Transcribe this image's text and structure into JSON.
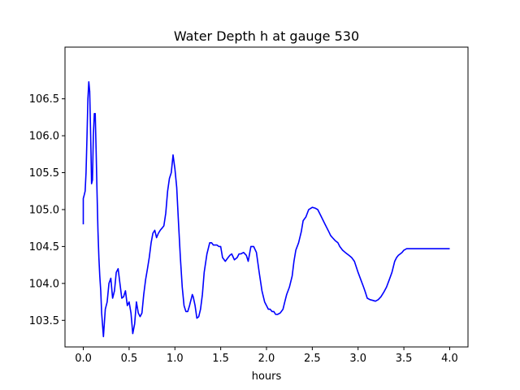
{
  "chart_data": {
    "type": "line",
    "title": "Water Depth h at gauge 530",
    "xlabel": "hours",
    "ylabel": "",
    "xlim": [
      -0.2,
      4.2
    ],
    "ylim": [
      103.14,
      107.2
    ],
    "xticks": [
      {
        "value": 0.0,
        "label": "0.0"
      },
      {
        "value": 0.5,
        "label": "0.5"
      },
      {
        "value": 1.0,
        "label": "1.0"
      },
      {
        "value": 1.5,
        "label": "1.5"
      },
      {
        "value": 2.0,
        "label": "2.0"
      },
      {
        "value": 2.5,
        "label": "2.5"
      },
      {
        "value": 3.0,
        "label": "3.0"
      },
      {
        "value": 3.5,
        "label": "3.5"
      },
      {
        "value": 4.0,
        "label": "4.0"
      }
    ],
    "yticks": [
      {
        "value": 103.5,
        "label": "103.5"
      },
      {
        "value": 104.0,
        "label": "104.0"
      },
      {
        "value": 104.5,
        "label": "104.5"
      },
      {
        "value": 105.0,
        "label": "105.0"
      },
      {
        "value": 105.5,
        "label": "105.5"
      },
      {
        "value": 106.0,
        "label": "106.0"
      },
      {
        "value": 106.5,
        "label": "106.5"
      }
    ],
    "grid": false,
    "series": [
      {
        "color": "#0000ff",
        "x": [
          0.0,
          0.0,
          0.01,
          0.02,
          0.03,
          0.04,
          0.05,
          0.06,
          0.07,
          0.08,
          0.09,
          0.1,
          0.11,
          0.12,
          0.13,
          0.14,
          0.15,
          0.16,
          0.17,
          0.18,
          0.19,
          0.2,
          0.22,
          0.24,
          0.26,
          0.28,
          0.3,
          0.32,
          0.34,
          0.36,
          0.38,
          0.4,
          0.42,
          0.44,
          0.46,
          0.48,
          0.5,
          0.52,
          0.54,
          0.56,
          0.58,
          0.6,
          0.62,
          0.64,
          0.66,
          0.68,
          0.7,
          0.72,
          0.74,
          0.76,
          0.78,
          0.8,
          0.82,
          0.84,
          0.86,
          0.88,
          0.9,
          0.92,
          0.94,
          0.96,
          0.98,
          1.0,
          1.02,
          1.04,
          1.06,
          1.08,
          1.1,
          1.12,
          1.14,
          1.16,
          1.17,
          1.18,
          1.19,
          1.2,
          1.22,
          1.24,
          1.26,
          1.28,
          1.3,
          1.32,
          1.35,
          1.38,
          1.4,
          1.42,
          1.44,
          1.46,
          1.48,
          1.5,
          1.52,
          1.55,
          1.58,
          1.6,
          1.62,
          1.65,
          1.68,
          1.7,
          1.72,
          1.75,
          1.78,
          1.8,
          1.83,
          1.86,
          1.89,
          1.92,
          1.95,
          1.98,
          2.0,
          2.02,
          2.04,
          2.06,
          2.08,
          2.1,
          2.12,
          2.15,
          2.18,
          2.2,
          2.22,
          2.25,
          2.28,
          2.3,
          2.32,
          2.35,
          2.38,
          2.4,
          2.43,
          2.46,
          2.5,
          2.53,
          2.56,
          2.6,
          2.64,
          2.68,
          2.7,
          2.72,
          2.75,
          2.78,
          2.8,
          2.83,
          2.86,
          2.9,
          2.93,
          2.96,
          3.0,
          3.03,
          3.06,
          3.08,
          3.1,
          3.13,
          3.16,
          3.19,
          3.22,
          3.25,
          3.28,
          3.31,
          3.34,
          3.37,
          3.4,
          3.42,
          3.44,
          3.46,
          3.48,
          3.5,
          3.53,
          3.56,
          3.59,
          3.62,
          3.65,
          3.68,
          3.71,
          3.74,
          3.77,
          3.8,
          3.83,
          3.86,
          3.89,
          3.92,
          3.95,
          3.98,
          4.0
        ],
        "y": [
          104.8,
          105.15,
          105.2,
          105.25,
          105.5,
          106.0,
          106.5,
          106.73,
          106.6,
          106.0,
          105.35,
          105.4,
          106.0,
          106.3,
          106.3,
          105.8,
          105.2,
          104.7,
          104.35,
          104.1,
          103.9,
          103.6,
          103.28,
          103.65,
          103.75,
          104.0,
          104.07,
          103.8,
          103.9,
          104.15,
          104.2,
          104.0,
          103.8,
          103.82,
          103.9,
          103.7,
          103.75,
          103.6,
          103.32,
          103.45,
          103.75,
          103.6,
          103.55,
          103.6,
          103.85,
          104.05,
          104.2,
          104.35,
          104.55,
          104.68,
          104.72,
          104.62,
          104.68,
          104.72,
          104.75,
          104.78,
          104.95,
          105.25,
          105.42,
          105.5,
          105.74,
          105.55,
          105.3,
          104.8,
          104.35,
          103.95,
          103.7,
          103.62,
          103.62,
          103.7,
          103.75,
          103.8,
          103.85,
          103.82,
          103.7,
          103.53,
          103.55,
          103.65,
          103.85,
          104.15,
          104.4,
          104.55,
          104.55,
          104.52,
          104.52,
          104.52,
          104.5,
          104.5,
          104.35,
          104.3,
          104.35,
          104.38,
          104.4,
          104.32,
          104.35,
          104.4,
          104.4,
          104.42,
          104.38,
          104.3,
          104.5,
          104.5,
          104.42,
          104.15,
          103.9,
          103.75,
          103.7,
          103.65,
          103.65,
          103.62,
          103.62,
          103.58,
          103.58,
          103.6,
          103.65,
          103.75,
          103.85,
          103.95,
          104.1,
          104.3,
          104.45,
          104.55,
          104.7,
          104.85,
          104.9,
          105.0,
          105.03,
          105.02,
          105.0,
          104.9,
          104.8,
          104.7,
          104.65,
          104.62,
          104.58,
          104.55,
          104.5,
          104.45,
          104.42,
          104.38,
          104.35,
          104.3,
          104.15,
          104.05,
          103.95,
          103.88,
          103.8,
          103.78,
          103.77,
          103.76,
          103.78,
          103.82,
          103.88,
          103.95,
          104.05,
          104.15,
          104.3,
          104.35,
          104.38,
          104.4,
          104.42,
          104.45,
          104.47,
          104.47,
          104.47,
          104.47,
          104.47,
          104.47,
          104.47,
          104.47,
          104.47,
          104.47,
          104.47,
          104.47,
          104.47,
          104.47,
          104.47,
          104.47,
          104.47
        ]
      }
    ]
  }
}
